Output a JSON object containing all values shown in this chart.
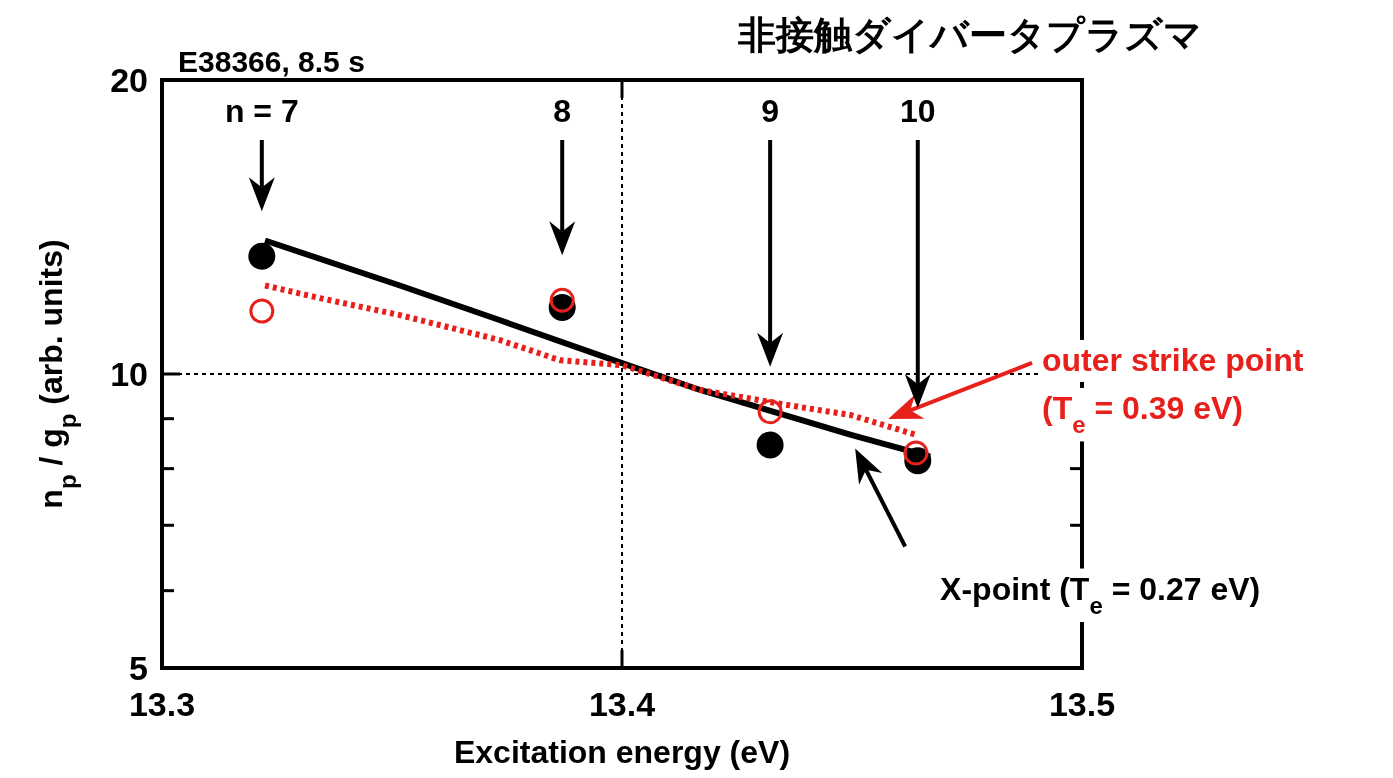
{
  "chart_data": {
    "type": "line",
    "title": "非接触ダイバータプラズマ",
    "xlabel": "Excitation energy (eV)",
    "ylabel": "n$_{p}$ / g$_{p}$ (arb. units)",
    "xlim": [
      13.3,
      13.5
    ],
    "xticks": [
      13.3,
      13.4,
      13.5
    ],
    "ylim": [
      5,
      20
    ],
    "yticks": [
      5,
      {
        "value": 6,
        "label": null
      },
      {
        "value": 7,
        "label": null
      },
      {
        "value": 8,
        "label": null
      },
      {
        "value": 9,
        "label": null
      },
      10,
      20
    ],
    "log": "y",
    "ref_lines": [
      {
        "axis": "x",
        "value": 13.4,
        "line_style": "dotted",
        "color": "#000000"
      },
      {
        "axis": "y",
        "value": 10,
        "line_style": "dotted",
        "color": "#000000"
      }
    ],
    "annotations": [
      "E38366, 8.5 s",
      "n = 7",
      "8",
      "9",
      "10"
    ],
    "series": [
      {
        "name": "X-point (T$_{e}$ = 0.27 eV)",
        "color": "#000000",
        "line_style": "solid",
        "x": [
          13.3224,
          13.3517,
          13.3735,
          13.4,
          13.417,
          13.4387,
          13.4496,
          13.467
        ],
        "values": [
          13.7,
          12.32,
          11.35,
          10.26,
          9.63,
          8.98,
          8.67,
          8.23
        ]
      },
      {
        "name": "outer strike point (T$_{e}$ = 0.39 eV)",
        "color": "#e8201c",
        "line_style": "dotted",
        "x": [
          13.3224,
          13.3343,
          13.3517,
          13.3735,
          13.3865,
          13.4,
          13.417,
          13.4387,
          13.4496,
          13.4637
        ],
        "values": [
          12.32,
          11.96,
          11.49,
          10.83,
          10.33,
          10.21,
          9.63,
          9.25,
          9.08,
          8.67
        ]
      },
      {
        "type": "scatter",
        "color": "#000000",
        "marker": "circle",
        "x": [
          13.3217,
          13.387,
          13.4322,
          13.4643
        ],
        "values": [
          13.2,
          11.7,
          8.46,
          8.15
        ]
      },
      {
        "type": "scatter",
        "color": "#e8201c",
        "marker": "circle",
        "x": [
          13.3217,
          13.387,
          13.4322,
          13.4639
        ],
        "values": [
          11.6,
          11.9,
          9.15,
          8.3
        ]
      }
    ]
  }
}
